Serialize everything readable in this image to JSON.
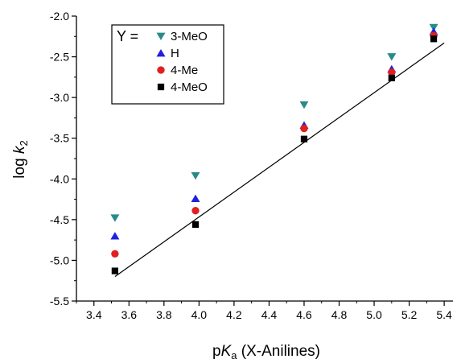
{
  "chart_data": {
    "type": "scatter",
    "title": "",
    "xlabel": {
      "prefix": "p",
      "italic": "K",
      "sub": "a",
      "suffix": " (X-Anilines)"
    },
    "ylabel": {
      "prefix": "log ",
      "italic": "k",
      "sub": "2"
    },
    "xlim": [
      3.3,
      5.45
    ],
    "ylim": [
      -5.5,
      -2.0
    ],
    "xticks": [
      3.4,
      3.6,
      3.8,
      4.0,
      4.2,
      4.4,
      4.6,
      4.8,
      5.0,
      5.2,
      5.4
    ],
    "xtick_labels": [
      "3.4",
      "3.6",
      "3.8",
      "4.0",
      "4.2",
      "4.4",
      "4.6",
      "4.8",
      "5.0",
      "5.2",
      "5.4"
    ],
    "yticks": [
      -2.0,
      -2.5,
      -3.0,
      -3.5,
      -4.0,
      -4.5,
      -5.0,
      -5.5
    ],
    "ytick_labels": [
      "-2.0",
      "-2.5",
      "-3.0",
      "-3.5",
      "-4.0",
      "-4.5",
      "-5.0",
      "-5.5"
    ],
    "legend": {
      "title": "Y =",
      "position": "top-left"
    },
    "series": [
      {
        "name": "3-MeO",
        "marker": "triangle-down",
        "color": "#2a8a8a",
        "x": [
          3.52,
          3.98,
          4.6,
          5.1,
          5.34
        ],
        "y": [
          -4.48,
          -3.96,
          -3.09,
          -2.5,
          -2.14
        ]
      },
      {
        "name": "H",
        "marker": "triangle-up",
        "color": "#1f1fe0",
        "x": [
          3.52,
          3.98,
          4.6,
          5.1,
          5.34
        ],
        "y": [
          -4.7,
          -4.24,
          -3.34,
          -2.65,
          -2.19
        ]
      },
      {
        "name": "4-Me",
        "marker": "circle",
        "color": "#e02020",
        "x": [
          3.52,
          3.98,
          4.6,
          5.1,
          5.34
        ],
        "y": [
          -4.92,
          -4.39,
          -3.38,
          -2.69,
          -2.24
        ]
      },
      {
        "name": "4-MeO",
        "marker": "square",
        "color": "#000000",
        "x": [
          3.52,
          3.98,
          4.6,
          5.1,
          5.34
        ],
        "y": [
          -5.13,
          -4.56,
          -3.51,
          -2.76,
          -2.28
        ]
      }
    ],
    "fit_line": {
      "x": [
        3.52,
        5.4
      ],
      "y": [
        -5.2,
        -2.33
      ]
    }
  }
}
